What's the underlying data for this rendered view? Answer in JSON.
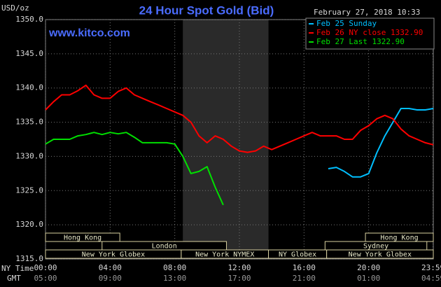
{
  "chart_data": {
    "type": "line",
    "title": "24 Hour Spot Gold (Bid)",
    "website": "www.kitco.com",
    "timestamp": "February 27, 2018 10:33",
    "y_label": "USD/oz",
    "x_label": "NY Time",
    "x2_label": "GMT",
    "x": [
      0,
      0.5,
      1,
      1.5,
      2,
      2.5,
      3,
      3.5,
      4,
      4.5,
      5,
      5.5,
      6,
      6.5,
      7,
      7.5,
      8,
      8.5,
      9,
      9.5,
      10,
      10.5,
      11,
      11.5,
      12,
      12.5,
      13,
      13.5,
      14,
      14.5,
      15,
      15.5,
      16,
      16.5,
      17,
      17.5,
      18,
      18.5,
      19,
      19.5,
      20,
      20.5,
      21,
      21.5,
      22,
      22.5,
      23,
      23.5,
      24
    ],
    "series": [
      {
        "name": "Feb 25 Sunday",
        "color": "#00bfff",
        "values": [
          null,
          null,
          null,
          null,
          null,
          null,
          null,
          null,
          null,
          null,
          null,
          null,
          null,
          null,
          null,
          null,
          null,
          null,
          null,
          null,
          null,
          null,
          null,
          null,
          null,
          null,
          null,
          null,
          null,
          null,
          null,
          null,
          null,
          null,
          null,
          1328.2,
          1328.4,
          1327.8,
          1327,
          1327,
          1327.5,
          1330.5,
          1333,
          1335,
          1337,
          1337,
          1336.8,
          1336.8,
          1337
        ]
      },
      {
        "name": "Feb 26 NY close 1332.90",
        "color": "#ff0000",
        "values": [
          1336.8,
          1338,
          1339,
          1339,
          1339.6,
          1340.4,
          1339,
          1338.5,
          1338.5,
          1339.5,
          1340,
          1339,
          1338.5,
          1338,
          1337.5,
          1337,
          1336.5,
          1336,
          1335,
          1333,
          1332,
          1333,
          1332.5,
          1331.5,
          1330.8,
          1330.6,
          1330.8,
          1331.5,
          1331,
          1331.5,
          1332,
          1332.5,
          1333,
          1333.5,
          1333,
          1333,
          1333,
          1332.5,
          1332.5,
          1333.8,
          1334.5,
          1335.5,
          1336,
          1335.5,
          1334,
          1333,
          1332.5,
          1332,
          1331.7
        ]
      },
      {
        "name": "Feb 27 Last 1322.90",
        "color": "#00e000",
        "values": [
          1331.8,
          1332.5,
          1332.5,
          1332.5,
          1333,
          1333.2,
          1333.5,
          1333.2,
          1333.5,
          1333.3,
          1333.5,
          1332.8,
          1332,
          1332,
          1332,
          1332,
          1331.8,
          1330,
          1327.5,
          1327.8,
          1328.5,
          1325.5,
          1322.9,
          null,
          null,
          null,
          null,
          null,
          null,
          null,
          null,
          null,
          null,
          null,
          null,
          null,
          null,
          null,
          null,
          null,
          null,
          null,
          null,
          null,
          null,
          null,
          null,
          null,
          null
        ]
      }
    ],
    "xlim": [
      0,
      24
    ],
    "ylim": [
      1315,
      1350
    ],
    "yticks": [
      {
        "value": 1315,
        "label": "1315.0"
      },
      {
        "value": 1320,
        "label": "1320.0"
      },
      {
        "value": 1325,
        "label": "1325.0"
      },
      {
        "value": 1330,
        "label": "1330.0"
      },
      {
        "value": 1335,
        "label": "1335.0"
      },
      {
        "value": 1340,
        "label": "1340.0"
      },
      {
        "value": 1345,
        "label": "1345.0"
      },
      {
        "value": 1350,
        "label": "1350.0"
      }
    ],
    "xticks": [
      {
        "value": 0,
        "label": "00:00"
      },
      {
        "value": 4,
        "label": "04:00"
      },
      {
        "value": 8,
        "label": "08:00"
      },
      {
        "value": 12,
        "label": "12:00"
      },
      {
        "value": 16,
        "label": "16:00"
      },
      {
        "value": 20,
        "label": "20:00"
      },
      {
        "value": 23.98,
        "label": "23:59"
      }
    ],
    "x2ticks": [
      {
        "value": 0,
        "label": "05:00"
      },
      {
        "value": 4,
        "label": "09:00"
      },
      {
        "value": 8,
        "label": "13:00"
      },
      {
        "value": 12,
        "label": "17:00"
      },
      {
        "value": 16,
        "label": "21:00"
      },
      {
        "value": 20,
        "label": "01:00"
      },
      {
        "value": 23.98,
        "label": "04:59"
      }
    ],
    "grid": true,
    "shaded_x": [
      8.5,
      13.8
    ],
    "session_rows": [
      [
        {
          "label": "Hong Kong",
          "start": 0,
          "end": 4.6
        },
        {
          "label": "Hong Kong",
          "start": 19.8,
          "end": 24
        }
      ],
      [
        {
          "label": "London",
          "start": 3.5,
          "end": 11.2
        },
        {
          "label": "Sydney",
          "start": 17.3,
          "end": 23.6
        }
      ],
      [
        {
          "label": "New York Globex",
          "start": 0,
          "end": 8.4
        },
        {
          "label": "New York NYMEX",
          "start": 8.4,
          "end": 13.8
        },
        {
          "label": "NY Globex",
          "start": 13.8,
          "end": 17.4
        },
        {
          "label": "New York Globex",
          "start": 17.4,
          "end": 24
        }
      ]
    ]
  }
}
